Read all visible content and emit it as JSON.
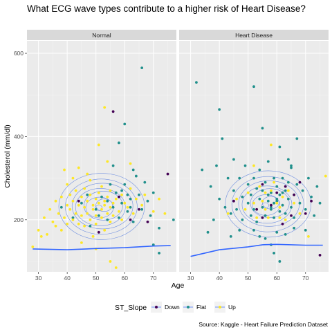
{
  "chart_data": {
    "type": "scatter",
    "title": "What ECG wave types contribute to a higher risk of Heart Disease?",
    "xlabel": "Age",
    "ylabel": "Cholesterol (mm/dl)",
    "caption": "Source: Kaggle - Heart Failure Prediction Dataset",
    "xlim": [
      26,
      78
    ],
    "ylim": [
      75,
      630
    ],
    "x_ticks": [
      30,
      40,
      50,
      60,
      70
    ],
    "y_ticks": [
      200,
      400,
      600
    ],
    "grid": true,
    "legend": {
      "title": "ST_Slope",
      "position": "bottom",
      "entries": [
        {
          "label": "Down",
          "color": "#440154"
        },
        {
          "label": "Flat",
          "color": "#21908C"
        },
        {
          "label": "Up",
          "color": "#FDE725"
        }
      ]
    },
    "facets": [
      {
        "label": "Normal",
        "trend": [
          [
            28,
            130
          ],
          [
            40,
            128
          ],
          [
            50,
            131
          ],
          [
            60,
            133
          ],
          [
            70,
            137
          ],
          [
            76,
            138
          ]
        ],
        "density_center": [
          52,
          232
        ],
        "points": {
          "Up": [
            [
              28,
              135
            ],
            [
              30,
              175
            ],
            [
              31,
              160
            ],
            [
              32,
              205
            ],
            [
              33,
              165
            ],
            [
              34,
              225
            ],
            [
              35,
              195
            ],
            [
              36,
              245
            ],
            [
              36,
              185
            ],
            [
              37,
              215
            ],
            [
              38,
              255
            ],
            [
              38,
              175
            ],
            [
              39,
              205
            ],
            [
              40,
              235
            ],
            [
              40,
              190
            ],
            [
              40,
              285
            ],
            [
              41,
              260
            ],
            [
              41,
              225
            ],
            [
              42,
              200
            ],
            [
              42,
              245
            ],
            [
              43,
              270
            ],
            [
              43,
              215
            ],
            [
              44,
              190
            ],
            [
              44,
              235
            ],
            [
              45,
              255
            ],
            [
              45,
              210
            ],
            [
              46,
              230
            ],
            [
              46,
              275
            ],
            [
              46,
              185
            ],
            [
              47,
              245
            ],
            [
              47,
              215
            ],
            [
              48,
              260
            ],
            [
              48,
              200
            ],
            [
              48,
              295
            ],
            [
              49,
              235
            ],
            [
              49,
              225
            ],
            [
              50,
              250
            ],
            [
              50,
              210
            ],
            [
              50,
              190
            ],
            [
              51,
              240
            ],
            [
              51,
              265
            ],
            [
              52,
              225
            ],
            [
              52,
              205
            ],
            [
              52,
              280
            ],
            [
              53,
              245
            ],
            [
              53,
              235
            ],
            [
              53,
              470
            ],
            [
              54,
              215
            ],
            [
              54,
              255
            ],
            [
              55,
              230
            ],
            [
              55,
              195
            ],
            [
              55,
              270
            ],
            [
              56,
              240
            ],
            [
              56,
              210
            ],
            [
              57,
              250
            ],
            [
              58,
              220
            ],
            [
              59,
              260
            ],
            [
              59,
              200
            ],
            [
              60,
              240
            ],
            [
              61,
              230
            ],
            [
              62,
              275
            ],
            [
              63,
              215
            ],
            [
              64,
              250
            ],
            [
              66,
              235
            ],
            [
              67,
              260
            ],
            [
              70,
              220
            ],
            [
              72,
              250
            ],
            [
              74,
              215
            ],
            [
              55,
              100
            ],
            [
              57,
              85
            ],
            [
              50,
              130
            ],
            [
              45,
              145
            ],
            [
              42,
              300
            ],
            [
              44,
              325
            ],
            [
              47,
              310
            ],
            [
              51,
              380
            ],
            [
              54,
              340
            ],
            [
              53,
              175
            ],
            [
              49,
              160
            ],
            [
              39,
              320
            ],
            [
              62,
              335
            ]
          ],
          "Flat": [
            [
              38,
              230
            ],
            [
              42,
              205
            ],
            [
              45,
              240
            ],
            [
              48,
              185
            ],
            [
              50,
              225
            ],
            [
              52,
              255
            ],
            [
              54,
              200
            ],
            [
              55,
              285
            ],
            [
              56,
              230
            ],
            [
              57,
              265
            ],
            [
              58,
              205
            ],
            [
              59,
              240
            ],
            [
              60,
              285
            ],
            [
              61,
              220
            ],
            [
              62,
              250
            ],
            [
              63,
              195
            ],
            [
              64,
              305
            ],
            [
              65,
              260
            ],
            [
              66,
              225
            ],
            [
              67,
              290
            ],
            [
              68,
              245
            ],
            [
              69,
              210
            ],
            [
              70,
              265
            ],
            [
              72,
              180
            ],
            [
              77,
              200
            ],
            [
              58,
              385
            ],
            [
              60,
              430
            ],
            [
              66,
              565
            ],
            [
              62,
              230
            ],
            [
              61,
              260
            ],
            [
              59,
              270
            ],
            [
              54,
              245
            ],
            [
              51,
              210
            ],
            [
              47,
              260
            ],
            [
              56,
              330
            ],
            [
              63,
              320
            ],
            [
              70,
              140
            ],
            [
              72,
              120
            ]
          ],
          "Down": [
            [
              44,
              245
            ],
            [
              56,
              460
            ],
            [
              62,
              200
            ],
            [
              65,
              225
            ],
            [
              68,
              195
            ],
            [
              75,
              310
            ],
            [
              51,
              170
            ],
            [
              58,
              255
            ]
          ]
        }
      },
      {
        "label": "Heart Disease",
        "trend": [
          [
            30,
            112
          ],
          [
            40,
            128
          ],
          [
            50,
            135
          ],
          [
            55,
            140
          ],
          [
            60,
            141
          ],
          [
            70,
            139
          ],
          [
            76,
            139
          ]
        ],
        "density_center": [
          57,
          238
        ],
        "points": {
          "Flat": [
            [
              32,
              530
            ],
            [
              34,
              320
            ],
            [
              37,
              280
            ],
            [
              38,
              200
            ],
            [
              39,
              330
            ],
            [
              40,
              250
            ],
            [
              40,
              465
            ],
            [
              41,
              395
            ],
            [
              42,
              230
            ],
            [
              43,
              300
            ],
            [
              44,
              215
            ],
            [
              45,
              270
            ],
            [
              45,
              345
            ],
            [
              46,
              225
            ],
            [
              47,
              300
            ],
            [
              48,
              255
            ],
            [
              48,
              200
            ],
            [
              49,
              330
            ],
            [
              50,
              240
            ],
            [
              50,
              285
            ],
            [
              51,
              210
            ],
            [
              51,
              260
            ],
            [
              52,
              300
            ],
            [
              52,
              225
            ],
            [
              53,
              275
            ],
            [
              53,
              195
            ],
            [
              54,
              250
            ],
            [
              54,
              320
            ],
            [
              55,
              230
            ],
            [
              55,
              270
            ],
            [
              56,
              210
            ],
            [
              56,
              290
            ],
            [
              57,
              245
            ],
            [
              57,
              340
            ],
            [
              58,
              225
            ],
            [
              58,
              265
            ],
            [
              59,
              300
            ],
            [
              59,
              205
            ],
            [
              60,
              245
            ],
            [
              60,
              280
            ],
            [
              61,
              220
            ],
            [
              61,
              260
            ],
            [
              62,
              300
            ],
            [
              62,
              235
            ],
            [
              63,
              270
            ],
            [
              63,
              215
            ],
            [
              64,
              250
            ],
            [
              64,
              290
            ],
            [
              65,
              230
            ],
            [
              65,
              325
            ],
            [
              66,
              260
            ],
            [
              66,
              205
            ],
            [
              67,
              285
            ],
            [
              68,
              240
            ],
            [
              69,
              270
            ],
            [
              70,
              225
            ],
            [
              71,
              300
            ],
            [
              72,
              255
            ],
            [
              73,
              210
            ],
            [
              74,
              280
            ],
            [
              75,
              240
            ],
            [
              60,
              170
            ],
            [
              58,
              140
            ],
            [
              56,
              155
            ],
            [
              63,
              165
            ],
            [
              66,
              180
            ],
            [
              70,
              175
            ],
            [
              52,
              175
            ],
            [
              54,
              160
            ],
            [
              59,
              120
            ],
            [
              61,
              100
            ],
            [
              52,
              520
            ],
            [
              55,
              420
            ],
            [
              61,
              375
            ],
            [
              64,
              345
            ],
            [
              67,
              395
            ],
            [
              65,
              330
            ],
            [
              44,
              160
            ],
            [
              47,
              175
            ],
            [
              36,
              170
            ],
            [
              57,
              260
            ],
            [
              60,
              250
            ],
            [
              62,
              265
            ],
            [
              58,
              230
            ],
            [
              59,
              240
            ]
          ],
          "Up": [
            [
              43,
              215
            ],
            [
              46,
              250
            ],
            [
              49,
              225
            ],
            [
              50,
              265
            ],
            [
              52,
              240
            ],
            [
              53,
              205
            ],
            [
              54,
              280
            ],
            [
              55,
              245
            ],
            [
              56,
              225
            ],
            [
              57,
              205
            ],
            [
              58,
              270
            ],
            [
              59,
              290
            ],
            [
              60,
              240
            ],
            [
              61,
              230
            ],
            [
              62,
              255
            ],
            [
              63,
              200
            ],
            [
              64,
              270
            ],
            [
              66,
              240
            ],
            [
              68,
              215
            ],
            [
              77,
              305
            ],
            [
              58,
              380
            ],
            [
              71,
              160
            ],
            [
              56,
              265
            ],
            [
              52,
              330
            ],
            [
              61,
              205
            ]
          ],
          "Down": [
            [
              45,
              245
            ],
            [
              53,
              225
            ],
            [
              55,
              205
            ],
            [
              58,
              235
            ],
            [
              60,
              265
            ],
            [
              62,
              190
            ],
            [
              63,
              280
            ],
            [
              66,
              260
            ],
            [
              68,
              290
            ],
            [
              70,
              215
            ],
            [
              72,
              245
            ],
            [
              75,
              115
            ],
            [
              65,
              210
            ],
            [
              55,
              285
            ]
          ]
        }
      }
    ]
  }
}
